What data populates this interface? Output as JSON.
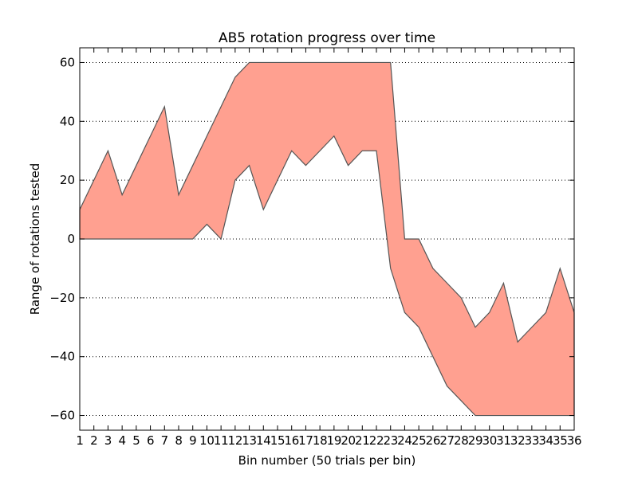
{
  "chart_data": {
    "type": "area",
    "title": "AB5 rotation progress over time",
    "xlabel": "Bin number (50 trials per bin)",
    "ylabel": "Range of rotations tested",
    "x": [
      1,
      2,
      3,
      4,
      5,
      6,
      7,
      8,
      9,
      10,
      11,
      12,
      13,
      14,
      15,
      16,
      17,
      18,
      19,
      20,
      21,
      22,
      23,
      24,
      25,
      26,
      27,
      28,
      29,
      30,
      31,
      32,
      33,
      34,
      35,
      36
    ],
    "series": [
      {
        "role": "upper",
        "values": [
          10,
          20,
          30,
          15,
          25,
          35,
          45,
          15,
          25,
          35,
          45,
          55,
          60,
          60,
          60,
          60,
          60,
          60,
          60,
          60,
          60,
          60,
          60,
          0,
          0,
          -10,
          -15,
          -20,
          -30,
          -25,
          -15,
          -35,
          -30,
          -25,
          -10,
          -25
        ]
      },
      {
        "role": "lower",
        "values": [
          0,
          0,
          0,
          0,
          0,
          0,
          0,
          0,
          0,
          5,
          0,
          20,
          25,
          10,
          20,
          30,
          25,
          30,
          35,
          25,
          30,
          30,
          -10,
          -25,
          -30,
          -40,
          -50,
          -55,
          -60,
          -60,
          -60,
          -60,
          -60,
          -60,
          -60,
          -60
        ]
      }
    ],
    "xlim": [
      1,
      36
    ],
    "ylim": [
      -65,
      65
    ],
    "yticks": [
      -60,
      -40,
      -20,
      0,
      20,
      40,
      60
    ],
    "ytick_labels": [
      "−60",
      "−40",
      "−20",
      "0",
      "20",
      "40",
      "60"
    ],
    "xtick_labels": [
      "1",
      "2",
      "3",
      "4",
      "5",
      "6",
      "7",
      "8",
      "9",
      "10",
      "11",
      "12",
      "13",
      "14",
      "15",
      "16",
      "17",
      "18",
      "19",
      "20",
      "21",
      "22",
      "23",
      "24",
      "25",
      "26",
      "27",
      "28",
      "29",
      "30",
      "31",
      "32",
      "33",
      "34",
      "35",
      "36"
    ],
    "grid": "y-dotted",
    "fill_color": "#ffa090",
    "edge_color": "#555555"
  }
}
